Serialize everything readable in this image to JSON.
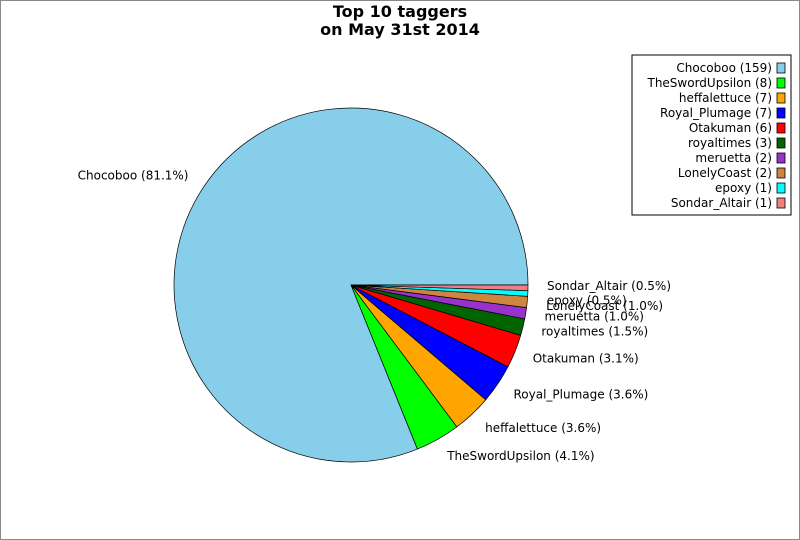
{
  "chart_data": {
    "type": "pie",
    "title_lines": [
      "Top 10 taggers",
      "on May 31st 2014"
    ],
    "slices": [
      {
        "name": "Chocoboo",
        "value": 159,
        "legend": "Chocoboo (159)",
        "label": "Chocoboo (81.1%)",
        "color": "#87ceeb"
      },
      {
        "name": "TheSwordUpsilon",
        "value": 8,
        "legend": "TheSwordUpsilon (8)",
        "label": "TheSwordUpsilon (4.1%)",
        "color": "#00ff00"
      },
      {
        "name": "heffalettuce",
        "value": 7,
        "legend": "heffalettuce (7)",
        "label": "heffalettuce (3.6%)",
        "color": "#ffa500"
      },
      {
        "name": "Royal_Plumage",
        "value": 7,
        "legend": "Royal_Plumage (7)",
        "label": "Royal_Plumage (3.6%)",
        "color": "#0000ff"
      },
      {
        "name": "Otakuman",
        "value": 6,
        "legend": "Otakuman (6)",
        "label": "Otakuman (3.1%)",
        "color": "#ff0000"
      },
      {
        "name": "royaltimes",
        "value": 3,
        "legend": "royaltimes (3)",
        "label": "royaltimes (1.5%)",
        "color": "#006400"
      },
      {
        "name": "meruetta",
        "value": 2,
        "legend": "meruetta (2)",
        "label": "meruetta (1.0%)",
        "color": "#9932cc"
      },
      {
        "name": "LonelyCoast",
        "value": 2,
        "legend": "LonelyCoast (2)",
        "label": "LonelyCoast (1.0%)",
        "color": "#cd853f"
      },
      {
        "name": "epoxy",
        "value": 1,
        "legend": "epoxy (1)",
        "label": "epoxy (0.5%)",
        "color": "#00ffff"
      },
      {
        "name": "Sondar_Altair",
        "value": 1,
        "legend": "Sondar_Altair (1)",
        "label": "Sondar_Altair (0.5%)",
        "color": "#f08080"
      }
    ],
    "legend_position": "top-right"
  }
}
